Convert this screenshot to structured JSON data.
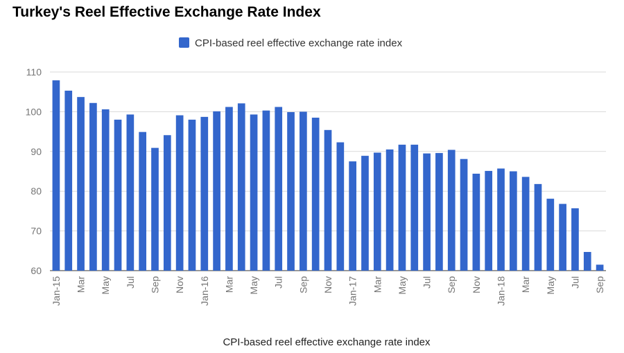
{
  "chart_data": {
    "type": "bar",
    "title": "Turkey's Reel Effective Exchange Rate Index",
    "xlabel": "CPI-based reel effective exchange rate index",
    "ylabel": "",
    "ylim": [
      60,
      110
    ],
    "yticks": [
      60,
      70,
      80,
      90,
      100,
      110
    ],
    "grid": true,
    "legend_position": "top",
    "series": [
      {
        "name": "CPI-based reel effective exchange rate index",
        "color": "#3366cc",
        "values": [
          107.9,
          105.3,
          103.7,
          102.2,
          100.6,
          98.0,
          99.3,
          94.9,
          90.9,
          94.1,
          99.1,
          98.0,
          98.7,
          100.1,
          101.2,
          102.1,
          99.3,
          100.3,
          101.2,
          99.9,
          100.0,
          98.5,
          95.4,
          92.3,
          87.5,
          88.9,
          89.7,
          90.5,
          91.7,
          91.7,
          89.5,
          89.6,
          90.4,
          88.1,
          84.4,
          85.1,
          85.7,
          85.0,
          83.6,
          81.8,
          78.1,
          76.8,
          75.7,
          64.7,
          61.5
        ]
      }
    ],
    "tick_labels": [
      {
        "index": 0,
        "label": "Jan-15"
      },
      {
        "index": 2,
        "label": "Mar"
      },
      {
        "index": 4,
        "label": "May"
      },
      {
        "index": 6,
        "label": "Jul"
      },
      {
        "index": 8,
        "label": "Sep"
      },
      {
        "index": 10,
        "label": "Nov"
      },
      {
        "index": 12,
        "label": "Jan-16"
      },
      {
        "index": 14,
        "label": "Mar"
      },
      {
        "index": 16,
        "label": "May"
      },
      {
        "index": 18,
        "label": "Jul"
      },
      {
        "index": 20,
        "label": "Sep"
      },
      {
        "index": 22,
        "label": "Nov"
      },
      {
        "index": 24,
        "label": "Jan-17"
      },
      {
        "index": 26,
        "label": "Mar"
      },
      {
        "index": 28,
        "label": "May"
      },
      {
        "index": 30,
        "label": "Jul"
      },
      {
        "index": 32,
        "label": "Sep"
      },
      {
        "index": 34,
        "label": "Nov"
      },
      {
        "index": 36,
        "label": "Jan-18"
      },
      {
        "index": 38,
        "label": "Mar"
      },
      {
        "index": 40,
        "label": "May"
      },
      {
        "index": 42,
        "label": "Jul"
      },
      {
        "index": 44,
        "label": "Sep"
      }
    ]
  }
}
